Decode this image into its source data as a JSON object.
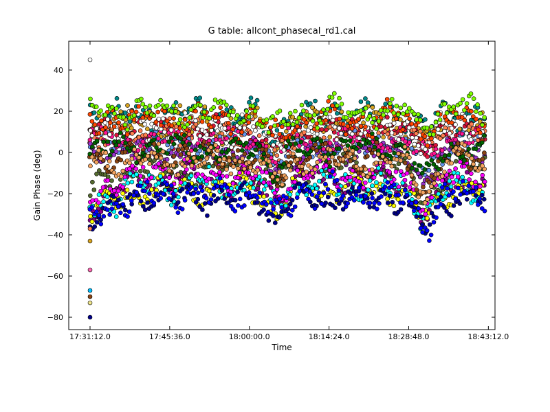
{
  "chart_data": {
    "type": "scatter",
    "title": "G table: allcont_phasecal_rd1.cal",
    "xlabel": "Time",
    "ylabel": "Gain Phase (deg)",
    "xlim": [
      "17:27:21",
      "18:44:24"
    ],
    "ylim": [
      -86,
      54
    ],
    "x_ticks": [
      "17:31:12.0",
      "17:45:36.0",
      "18:00:00.0",
      "18:14:24.0",
      "18:28:48.0",
      "18:43:12.0"
    ],
    "y_ticks": [
      -80,
      -60,
      -40,
      -20,
      0,
      20,
      40
    ],
    "grid": false,
    "legend": "none",
    "data_range": {
      "x_start": "17:31:12",
      "x_end": "18:42:30"
    },
    "series": [
      {
        "color": "#008b8b",
        "base": 18,
        "amp": 6
      },
      {
        "color": "#daa520",
        "base": 14,
        "amp": 7
      },
      {
        "color": "#dc143c",
        "base": 10,
        "amp": 6
      },
      {
        "color": "#ff7f50",
        "base": 8,
        "amp": 7
      },
      {
        "color": "#6495ed",
        "base": 4,
        "amp": 5
      },
      {
        "color": "#9932cc",
        "base": 0,
        "amp": 4
      },
      {
        "color": "#556b2f",
        "base": -8,
        "amp": 5
      },
      {
        "color": "#8b008b",
        "base": -14,
        "amp": 6
      },
      {
        "color": "#ffff00",
        "base": -18,
        "amp": 5
      },
      {
        "color": "#00ffff",
        "base": -16,
        "amp": 6
      },
      {
        "color": "#00008b",
        "base": -22,
        "amp": 5
      },
      {
        "color": "#ff00ff",
        "base": -10,
        "amp": 6
      },
      {
        "color": "#ff1493",
        "base": 6,
        "amp": 5
      },
      {
        "color": "#ffffff",
        "base": 12,
        "amp": 6
      },
      {
        "color": "#8b4513",
        "base": -2,
        "amp": 5
      },
      {
        "color": "#ff4500",
        "base": 16,
        "amp": 6
      },
      {
        "color": "#7fff00",
        "base": 20,
        "amp": 5
      },
      {
        "color": "#006400",
        "base": 2,
        "amp": 5
      },
      {
        "color": "#0000ff",
        "base": -20,
        "amp": 6
      },
      {
        "color": "#f4a460",
        "base": -4,
        "amp": 5
      }
    ],
    "outliers": [
      {
        "x": "17:31:12",
        "y": 45,
        "color": "#ffffff"
      },
      {
        "x": "17:31:12",
        "y": -57,
        "color": "#ff69b4"
      },
      {
        "x": "17:31:12",
        "y": -67,
        "color": "#00bfff"
      },
      {
        "x": "17:31:12",
        "y": -70,
        "color": "#8b4513"
      },
      {
        "x": "17:31:12",
        "y": -73,
        "color": "#f0e68c"
      },
      {
        "x": "17:31:12",
        "y": -80,
        "color": "#00008b"
      },
      {
        "x": "17:31:12",
        "y": -43,
        "color": "#daa520"
      },
      {
        "x": "17:31:12",
        "y": -37,
        "color": "#ff7f50"
      }
    ]
  }
}
